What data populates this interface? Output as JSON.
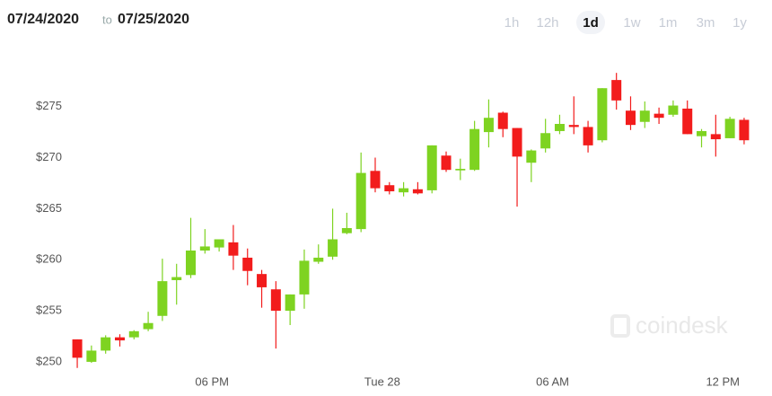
{
  "chart_data": {
    "type": "candlestick",
    "date_from": "07/24/2020",
    "date_separator": "to",
    "date_to": "07/25/2020",
    "range_options": [
      {
        "label": "1h",
        "selected": false
      },
      {
        "label": "12h",
        "selected": false
      },
      {
        "label": "1d",
        "selected": true
      },
      {
        "label": "1w",
        "selected": false
      },
      {
        "label": "1m",
        "selected": false
      },
      {
        "label": "3m",
        "selected": false
      },
      {
        "label": "1y",
        "selected": false
      }
    ],
    "watermark": "coindesk",
    "x": [
      0,
      1,
      2,
      3,
      4,
      5,
      6,
      7,
      8,
      9,
      10,
      11,
      12,
      13,
      14,
      15,
      16,
      17,
      18,
      19,
      20,
      21,
      22,
      23,
      24,
      25,
      26,
      27,
      28,
      29,
      30,
      31,
      32,
      33,
      34,
      35,
      36,
      37,
      38,
      39,
      40,
      41,
      42,
      43,
      44,
      45,
      46,
      47
    ],
    "open": [
      252.2,
      250.0,
      251.1,
      252.4,
      252.4,
      253.2,
      254.5,
      258.0,
      258.5,
      260.9,
      261.2,
      261.7,
      260.2,
      258.6,
      257.1,
      255.0,
      256.6,
      259.8,
      260.3,
      262.6,
      263.0,
      268.7,
      267.3,
      266.6,
      266.9,
      266.8,
      270.2,
      268.75,
      268.8,
      272.5,
      274.4,
      272.9,
      269.5,
      270.9,
      272.6,
      273.2,
      273.0,
      271.7,
      277.6,
      274.6,
      273.5,
      274.3,
      274.2,
      274.8,
      272.1,
      272.3,
      271.9,
      273.7
    ],
    "high": [
      252.2,
      251.6,
      252.6,
      252.7,
      253.1,
      254.9,
      260.1,
      259.6,
      264.1,
      263.0,
      262.0,
      263.4,
      261.1,
      259.0,
      257.9,
      256.6,
      261.0,
      261.5,
      265.0,
      264.6,
      270.5,
      270.0,
      267.6,
      267.6,
      267.6,
      271.2,
      270.6,
      269.9,
      273.6,
      275.7,
      274.5,
      272.9,
      270.8,
      273.8,
      274.2,
      276.0,
      273.6,
      276.8,
      278.3,
      276.0,
      275.5,
      274.9,
      275.6,
      275.6,
      272.8,
      274.2,
      274.0,
      273.9
    ],
    "low": [
      249.4,
      249.9,
      250.8,
      251.5,
      252.2,
      253.0,
      254.0,
      255.6,
      258.2,
      260.6,
      260.8,
      259.0,
      257.5,
      255.3,
      251.3,
      253.6,
      255.2,
      259.6,
      260.0,
      262.5,
      262.7,
      266.6,
      266.4,
      266.2,
      266.4,
      266.5,
      268.6,
      267.8,
      268.7,
      271.0,
      272.0,
      265.2,
      267.6,
      270.5,
      272.3,
      272.3,
      270.5,
      271.5,
      274.7,
      272.7,
      272.9,
      273.3,
      274.0,
      272.3,
      271.0,
      270.1,
      271.9,
      271.3
    ],
    "close": [
      250.4,
      251.1,
      252.4,
      252.1,
      253.0,
      253.8,
      257.9,
      258.3,
      260.9,
      261.3,
      262.0,
      260.4,
      258.9,
      257.3,
      255.0,
      256.6,
      259.9,
      260.2,
      262.0,
      263.1,
      268.5,
      267.0,
      266.7,
      267.0,
      266.5,
      271.2,
      268.8,
      268.9,
      272.8,
      273.9,
      272.8,
      270.1,
      270.7,
      272.4,
      273.3,
      273.0,
      271.2,
      276.8,
      275.6,
      273.2,
      274.6,
      273.9,
      275.1,
      272.3,
      272.6,
      271.8,
      273.8,
      271.7
    ],
    "up_color": "#7ed321",
    "down_color": "#f21c1c",
    "xlim": [
      -0.7,
      47.7
    ],
    "xticks": [
      {
        "value": 9.5,
        "label": "06 PM"
      },
      {
        "value": 21.5,
        "label": "Tue 28"
      },
      {
        "value": 33.5,
        "label": "06 AM"
      },
      {
        "value": 45.5,
        "label": "12 PM"
      }
    ],
    "ylim": [
      248.5,
      280.6
    ],
    "yticks": [
      {
        "value": 250,
        "label": "$250"
      },
      {
        "value": 255,
        "label": "$255"
      },
      {
        "value": 260,
        "label": "$260"
      },
      {
        "value": 265,
        "label": "$265"
      },
      {
        "value": 270,
        "label": "$270"
      },
      {
        "value": 275,
        "label": "$275"
      }
    ],
    "grid": false
  }
}
